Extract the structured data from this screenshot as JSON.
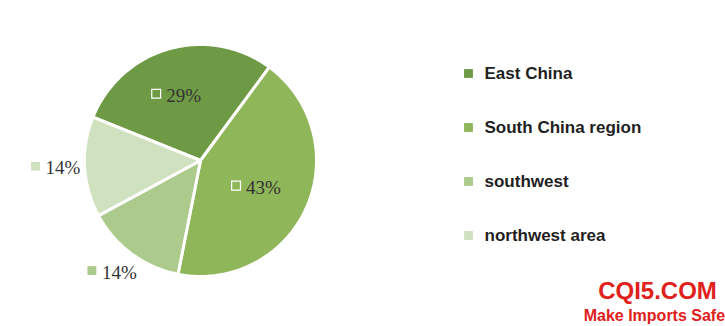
{
  "chart_data": {
    "type": "pie",
    "categories": [
      "East China",
      "South China region",
      "southwest",
      "northwest area"
    ],
    "values": [
      29,
      43,
      14,
      14
    ],
    "value_labels": [
      "29%",
      "43%",
      "14%",
      "14%"
    ],
    "colors": [
      "#6f9a45",
      "#8fb658",
      "#abca8c",
      "#d0e1bf"
    ],
    "data_labels": true,
    "legend": "right",
    "annotations": [
      "CQI5.COM",
      "Make Imports Safer"
    ]
  }
}
